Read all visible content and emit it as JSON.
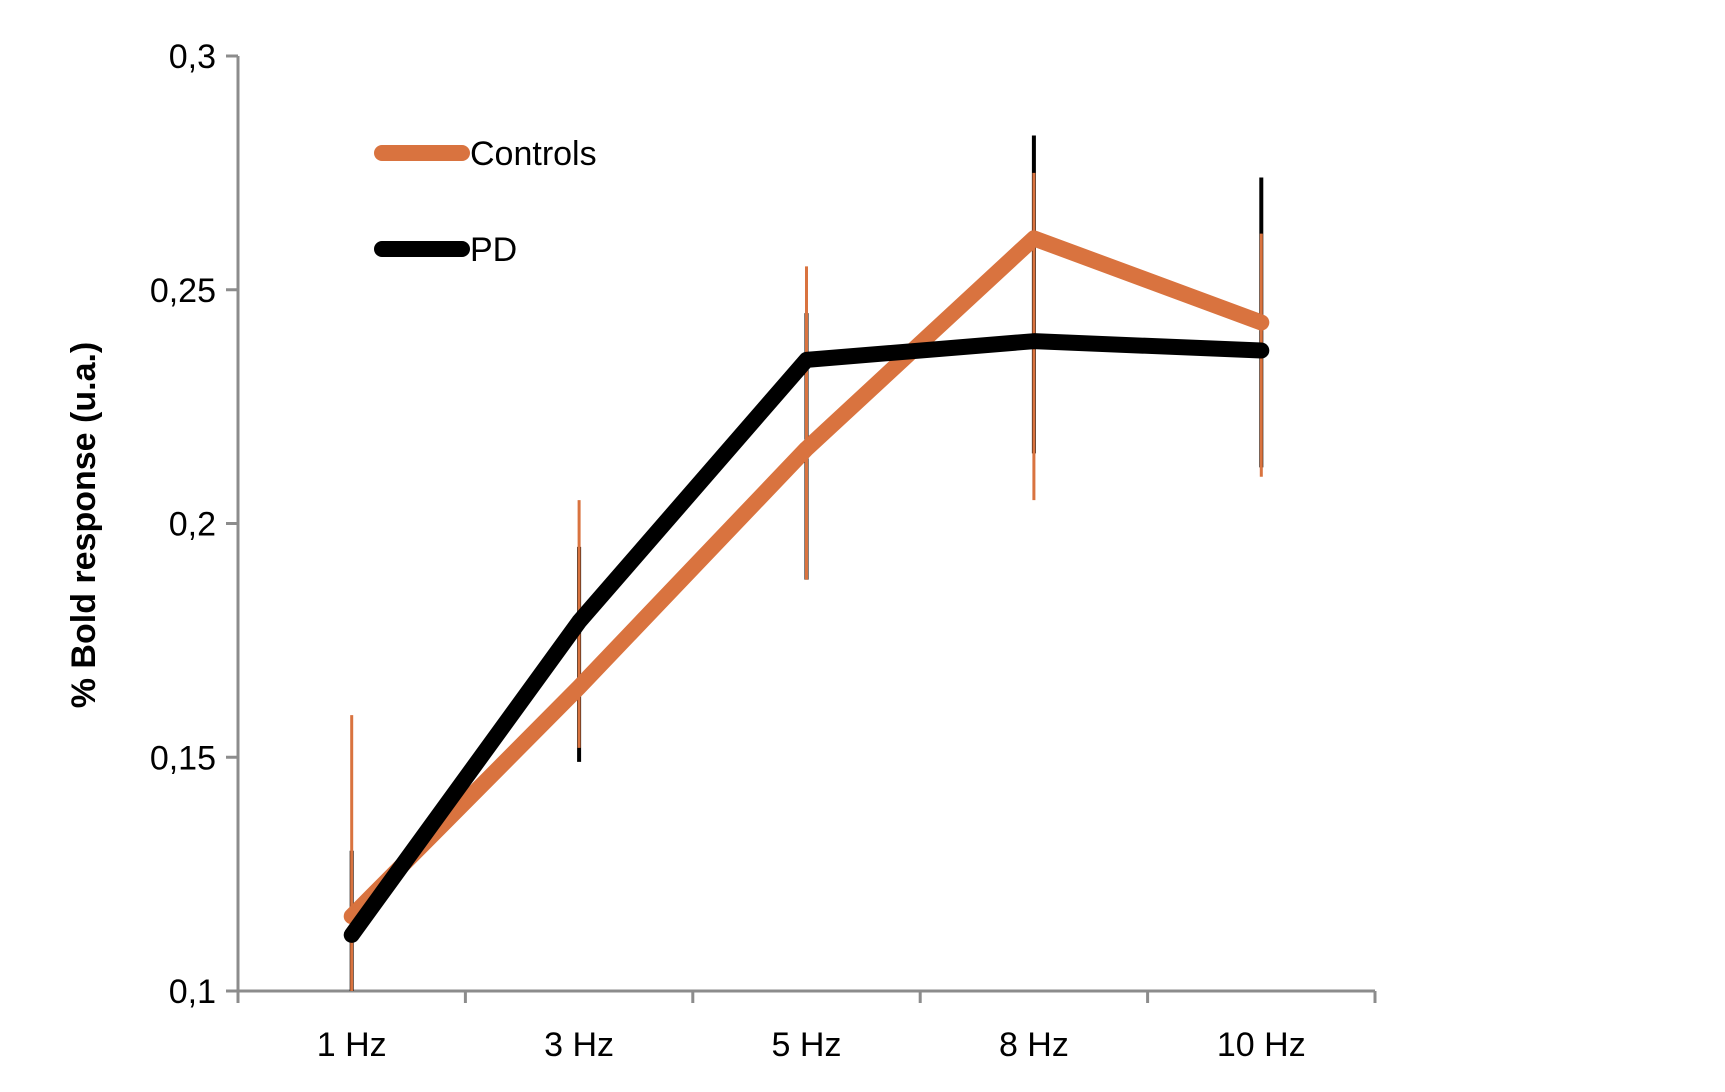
{
  "chart_data": {
    "type": "line",
    "categories": [
      "1 Hz",
      "3 Hz",
      "5 Hz",
      "8 Hz",
      "10 Hz"
    ],
    "ylabel": "% Bold response (u.a.)",
    "xlabel": "",
    "ylim": [
      0.1,
      0.3
    ],
    "yticks": [
      0.1,
      0.15,
      0.2,
      0.25,
      0.3
    ],
    "ytick_labels": [
      "0,1",
      "0,15",
      "0,2",
      "0,25",
      "0,3"
    ],
    "legend_position": "top-left",
    "grid": false,
    "series": [
      {
        "name": "Controls",
        "color": "#d9733f",
        "values": [
          0.116,
          0.165,
          0.216,
          0.261,
          0.243
        ],
        "error_upper": [
          0.159,
          0.205,
          0.255,
          0.275,
          0.262
        ],
        "error_lower": [
          0.1,
          0.152,
          0.188,
          0.205,
          0.21
        ]
      },
      {
        "name": "PD",
        "color": "#000000",
        "values": [
          0.112,
          0.179,
          0.235,
          0.239,
          0.237
        ],
        "error_upper": [
          0.13,
          0.195,
          0.245,
          0.283,
          0.274
        ],
        "error_lower": [
          0.1,
          0.149,
          0.188,
          0.215,
          0.212
        ]
      }
    ],
    "axis_color": "#8c8c8c"
  }
}
